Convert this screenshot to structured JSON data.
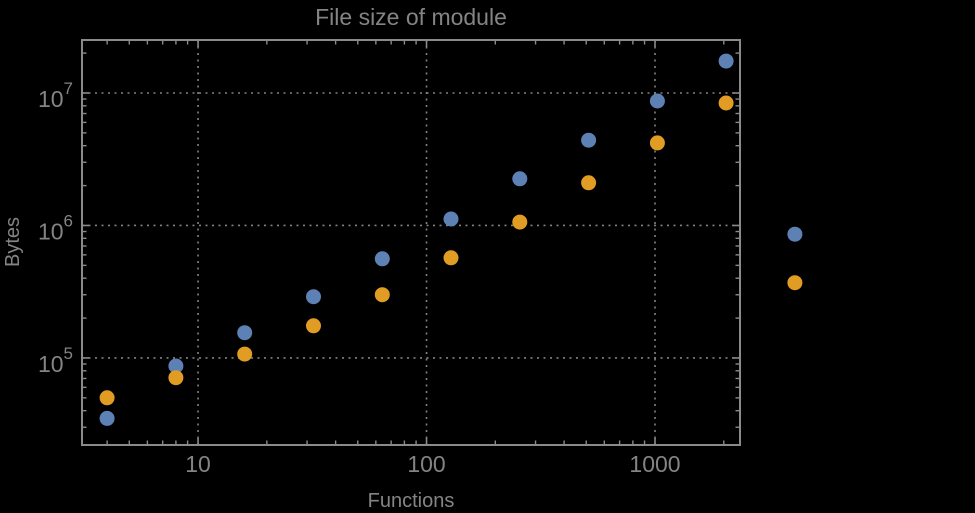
{
  "page": {
    "background": "#000000"
  },
  "chart_data": {
    "type": "scatter",
    "title": "File size of module",
    "xlabel": "Functions",
    "ylabel": "Bytes",
    "x_scale": "log10",
    "y_scale": "log10",
    "x": [
      4,
      8,
      16,
      32,
      64,
      128,
      256,
      512,
      1024,
      2048,
      4096
    ],
    "series": [
      {
        "name": "blue",
        "color": "#5e81b5",
        "values": [
          35000,
          87000,
          155000,
          290000,
          560000,
          1120000,
          2250000,
          4400000,
          8700000,
          17400000,
          860000
        ]
      },
      {
        "name": "orange",
        "color": "#e19c24",
        "values": [
          50000,
          71000,
          107000,
          175000,
          300000,
          570000,
          1060000,
          2100000,
          4200000,
          8400000,
          370000
        ]
      }
    ],
    "x_ticks": {
      "values": [
        10,
        100,
        1000
      ],
      "labels": [
        "10",
        "100",
        "1000"
      ]
    },
    "y_ticks": {
      "values": [
        100000,
        1000000,
        10000000
      ],
      "labels_base": "10",
      "labels_exp": [
        "5",
        "6",
        "7"
      ]
    },
    "axis": {
      "x_log_range": [
        0.492,
        3.372
      ],
      "y_log_range": [
        4.343,
        7.4
      ],
      "frame": true,
      "clip_points": false
    },
    "grid": {
      "on": "major",
      "style": "dotted"
    },
    "legend": "none",
    "style": {
      "background": "#000000",
      "text_color": "#848484",
      "frame_color": "#8a8a8a",
      "grid_color": "#828282",
      "marker_diameter_px": 15
    }
  }
}
